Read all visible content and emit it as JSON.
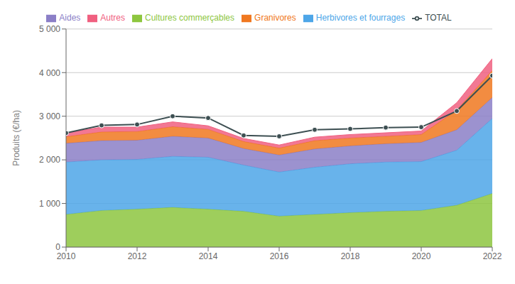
{
  "chart_data": {
    "type": "area",
    "stacked": true,
    "grid": true,
    "legend": "top",
    "ylabel": "Produits (€/ha)",
    "x": [
      2010,
      2011,
      2012,
      2013,
      2014,
      2015,
      2016,
      2017,
      2018,
      2019,
      2020,
      2021,
      2022
    ],
    "xlim": [
      2010,
      2022
    ],
    "xticks": [
      2010,
      2012,
      2014,
      2016,
      2018,
      2020,
      2022
    ],
    "ylim": [
      0,
      5000
    ],
    "yticks": [
      0,
      {
        "value": 1000,
        "label": "1 000"
      },
      {
        "value": 2000,
        "label": "2 000"
      },
      {
        "value": 3000,
        "label": "3 000"
      },
      {
        "value": 4000,
        "label": "4 000"
      },
      {
        "value": 5000,
        "label": "5 000"
      }
    ],
    "series": [
      {
        "name": "Cultures commerçables",
        "color": "#8dc63f",
        "values": [
          750,
          840,
          870,
          910,
          870,
          820,
          710,
          750,
          790,
          820,
          840,
          960,
          1230
        ]
      },
      {
        "name": "Herbivores et fourrages",
        "color": "#4da6e8",
        "values": [
          1200,
          1160,
          1140,
          1170,
          1190,
          1060,
          1010,
          1080,
          1120,
          1130,
          1120,
          1260,
          1720
        ]
      },
      {
        "name": "Aides",
        "color": "#8b7fc7",
        "values": [
          430,
          440,
          440,
          460,
          440,
          380,
          390,
          420,
          410,
          420,
          440,
          470,
          480
        ]
      },
      {
        "name": "Granivores",
        "color": "#f07820",
        "values": [
          150,
          200,
          200,
          220,
          200,
          160,
          160,
          190,
          180,
          170,
          180,
          450,
          620
        ]
      },
      {
        "name": "Autres",
        "color": "#f06080",
        "values": [
          85,
          110,
          100,
          110,
          80,
          70,
          70,
          80,
          80,
          80,
          80,
          170,
          270
        ]
      },
      {
        "name": "TOTAL",
        "type": "line",
        "color": "#3d4f52",
        "marker": "circle",
        "values": [
          2615,
          2790,
          2810,
          3000,
          2960,
          2560,
          2540,
          2690,
          2710,
          2740,
          2750,
          3120,
          3930
        ]
      }
    ]
  }
}
